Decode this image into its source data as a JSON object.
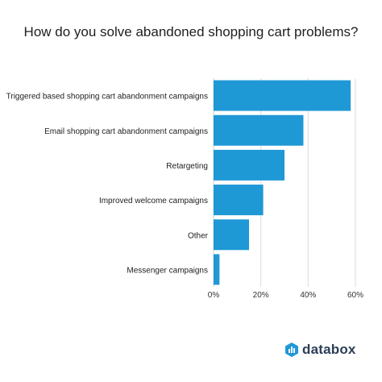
{
  "chart_data": {
    "type": "bar",
    "orientation": "horizontal",
    "title": "How do you solve abandoned shopping cart problems?",
    "categories": [
      "Triggered based shopping cart abandonment campaigns",
      "Email shopping cart abandonment campaigns",
      "Retargeting",
      "Improved welcome campaigns",
      "Other",
      "Messenger campaigns"
    ],
    "values": [
      58,
      38,
      30,
      21,
      15,
      2.5
    ],
    "value_unit": "%",
    "xlim": [
      0,
      60
    ],
    "x_ticks": [
      "0%",
      "20%",
      "40%",
      "60%"
    ],
    "grid": true,
    "bar_color": "#1f98d6",
    "grid_color": "#dcdcdc"
  },
  "brand": {
    "name": "databox",
    "logo_color": "#1f98d6",
    "text_color": "#2c3e57"
  }
}
